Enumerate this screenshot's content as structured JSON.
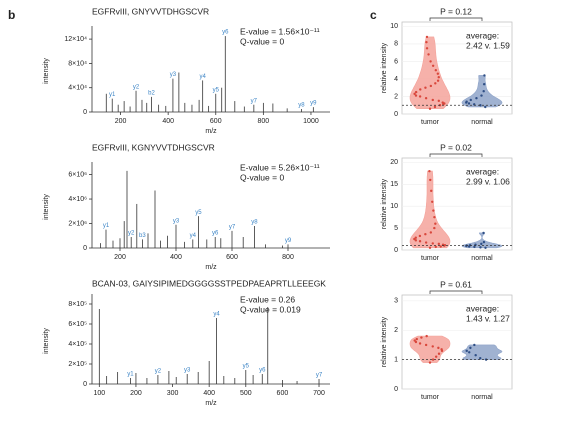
{
  "figure": {
    "panels": [
      "b",
      "c"
    ]
  },
  "chart_data": [
    {
      "type": "spectrum",
      "title": "EGFRvIII, GNYVVTDHGSCVR",
      "xlabel": "m/z",
      "ylabel": "intensity",
      "annotations": [
        "E-value = 1.56×10⁻¹¹",
        "Q-value = 0"
      ],
      "xlim": [
        80,
        1080
      ],
      "xticks": [
        200,
        400,
        600,
        800,
        1000
      ],
      "ylim": [
        0,
        135000
      ],
      "yticks": [
        0,
        {
          "value": 40000,
          "label": "4×10⁴"
        },
        {
          "value": 80000,
          "label": "8×10⁴"
        },
        {
          "value": 120000,
          "label": "12×10⁴"
        }
      ],
      "color": "#333333",
      "label_color": "#3d85c6",
      "x": [
        140,
        165,
        190,
        215,
        240,
        265,
        290,
        310,
        330,
        360,
        390,
        420,
        445,
        470,
        500,
        530,
        545,
        570,
        600,
        625,
        640,
        680,
        720,
        760,
        800,
        840,
        900,
        960,
        1010
      ],
      "values": [
        30000,
        22000,
        12000,
        18000,
        9000,
        35000,
        20000,
        15000,
        25000,
        12000,
        10000,
        55000,
        65000,
        15000,
        12000,
        20000,
        52000,
        10000,
        30000,
        40000,
        125000,
        18000,
        9000,
        12000,
        15000,
        14000,
        6000,
        5000,
        8000
      ],
      "peak_labels": [
        null,
        "y1",
        null,
        null,
        null,
        "y2",
        null,
        null,
        "b2",
        null,
        null,
        "y3",
        null,
        null,
        null,
        null,
        "y4",
        null,
        "y5",
        null,
        "y6",
        null,
        null,
        "y7",
        null,
        null,
        null,
        "y8",
        "y9"
      ]
    },
    {
      "type": "spectrum",
      "title": "EGFRvIII, KGNYVVTDHGSCVR",
      "xlabel": "m/z",
      "ylabel": "intensity",
      "annotations": [
        "E-value = 5.26×10⁻¹¹",
        "Q-value = 0"
      ],
      "xlim": [
        100,
        950
      ],
      "xticks": [
        200,
        400,
        600,
        800
      ],
      "ylim": [
        0,
        6700000
      ],
      "yticks": [
        0,
        {
          "value": 2000000,
          "label": "2×10⁶"
        },
        {
          "value": 4000000,
          "label": "4×10⁶"
        },
        {
          "value": 6000000,
          "label": "6×10⁶"
        }
      ],
      "color": "#333333",
      "label_color": "#3d85c6",
      "x": [
        130,
        150,
        175,
        200,
        215,
        225,
        240,
        260,
        280,
        300,
        325,
        345,
        370,
        400,
        430,
        460,
        480,
        510,
        540,
        560,
        600,
        640,
        680,
        720,
        780,
        800
      ],
      "values": [
        400000,
        1500000,
        600000,
        800000,
        2200000,
        6300000,
        900000,
        3600000,
        700000,
        1200000,
        4700000,
        600000,
        1000000,
        1900000,
        500000,
        700000,
        2600000,
        700000,
        900000,
        800000,
        1400000,
        900000,
        1800000,
        300000,
        200000,
        300000
      ],
      "peak_labels": [
        null,
        "y1",
        null,
        null,
        null,
        null,
        "y2",
        null,
        "b3",
        null,
        null,
        null,
        null,
        "y3",
        null,
        "y4",
        "y5",
        null,
        "y6",
        null,
        "y7",
        null,
        "y8",
        null,
        null,
        "y9"
      ]
    },
    {
      "type": "spectrum",
      "title": "BCAN-03, GAIYSIPIMEDGGGGSSTPEDPAEAPRTLLEEEGK",
      "xlabel": "m/z",
      "ylabel": "intensity",
      "annotations": [
        "E-value = 0.26",
        "Q-value = 0.019"
      ],
      "xlim": [
        80,
        730
      ],
      "xticks": [
        100,
        200,
        300,
        400,
        500,
        600,
        700
      ],
      "ylim": [
        0,
        860000
      ],
      "yticks": [
        0,
        {
          "value": 200000,
          "label": "2×10⁵"
        },
        {
          "value": 400000,
          "label": "4×10⁵"
        },
        {
          "value": 600000,
          "label": "6×10⁵"
        },
        {
          "value": 800000,
          "label": "8×10⁵"
        }
      ],
      "color": "#333333",
      "label_color": "#3d85c6",
      "x": [
        100,
        120,
        150,
        185,
        200,
        230,
        260,
        290,
        310,
        340,
        370,
        400,
        420,
        440,
        470,
        500,
        520,
        545,
        560,
        600,
        640,
        700
      ],
      "values": [
        750000,
        80000,
        120000,
        60000,
        110000,
        60000,
        90000,
        130000,
        70000,
        100000,
        120000,
        230000,
        660000,
        80000,
        60000,
        140000,
        90000,
        100000,
        770000,
        40000,
        30000,
        50000
      ],
      "peak_labels": [
        null,
        null,
        null,
        "y1",
        null,
        null,
        "y2",
        null,
        null,
        "y3",
        null,
        null,
        "y4",
        null,
        null,
        "y5",
        null,
        "y6",
        null,
        null,
        null,
        "y7"
      ]
    },
    {
      "type": "violin",
      "ylabel": "relative intensity",
      "p_label": "P = 0.12",
      "annotations": [
        "average:",
        "2.42 v. 1.59"
      ],
      "ylim": [
        0,
        10.5
      ],
      "yticks": [
        0,
        2,
        4,
        6,
        8,
        10
      ],
      "refline": 1,
      "categories": [
        "tumor",
        "normal"
      ],
      "series": [
        {
          "name": "tumor",
          "color": "#f4a39b",
          "point_color": "#d9473c",
          "values": [
            0.6,
            0.8,
            1.0,
            1.1,
            1.2,
            1.3,
            1.5,
            1.6,
            1.8,
            2.0,
            2.1,
            2.3,
            2.5,
            2.8,
            3.0,
            3.2,
            3.5,
            3.8,
            4.2,
            4.6,
            5.0,
            5.5,
            6.0,
            6.8,
            7.5,
            8.2,
            8.8
          ]
        },
        {
          "name": "normal",
          "color": "#8fa4c9",
          "point_color": "#2f4f86",
          "values": [
            0.8,
            1.0,
            1.1,
            1.2,
            1.3,
            1.4,
            1.6,
            1.8,
            2.1,
            2.6,
            3.4,
            4.4
          ]
        }
      ]
    },
    {
      "type": "violin",
      "ylabel": "relative intensity",
      "p_label": "P = 0.02",
      "annotations": [
        "average:",
        "2.99 v. 1.06"
      ],
      "ylim": [
        0,
        21
      ],
      "yticks": [
        0,
        5,
        10,
        15,
        20
      ],
      "refline": 1,
      "categories": [
        "tumor",
        "normal"
      ],
      "series": [
        {
          "name": "tumor",
          "color": "#f4a39b",
          "point_color": "#d9473c",
          "values": [
            0.5,
            0.7,
            0.8,
            1.0,
            1.1,
            1.2,
            1.4,
            1.5,
            1.7,
            2.0,
            2.2,
            2.5,
            2.8,
            3.2,
            3.6,
            4.0,
            5.0,
            6.0,
            7.5,
            9.0,
            11.0,
            13.5,
            16.0,
            18.0
          ]
        },
        {
          "name": "normal",
          "color": "#8fa4c9",
          "point_color": "#2f4f86",
          "values": [
            0.5,
            0.6,
            0.7,
            0.8,
            0.9,
            1.0,
            1.1,
            1.2,
            1.4,
            1.8,
            3.9
          ]
        }
      ]
    },
    {
      "type": "violin",
      "ylabel": "relative intensity",
      "p_label": "P = 0.61",
      "annotations": [
        "average:",
        "1.43 v. 1.27"
      ],
      "ylim": [
        0,
        3.2
      ],
      "yticks": [
        0,
        1,
        2,
        3
      ],
      "refline": 1,
      "categories": [
        "tumor",
        "normal"
      ],
      "series": [
        {
          "name": "tumor",
          "color": "#f4a39b",
          "point_color": "#d9473c",
          "values": [
            0.9,
            1.0,
            1.1,
            1.2,
            1.3,
            1.35,
            1.4,
            1.45,
            1.5,
            1.55,
            1.6,
            1.65,
            1.7,
            1.75,
            1.8
          ]
        },
        {
          "name": "normal",
          "color": "#8fa4c9",
          "point_color": "#2f4f86",
          "values": [
            1.0,
            1.05,
            1.15,
            1.25,
            1.3,
            1.4,
            1.5
          ]
        }
      ]
    }
  ]
}
